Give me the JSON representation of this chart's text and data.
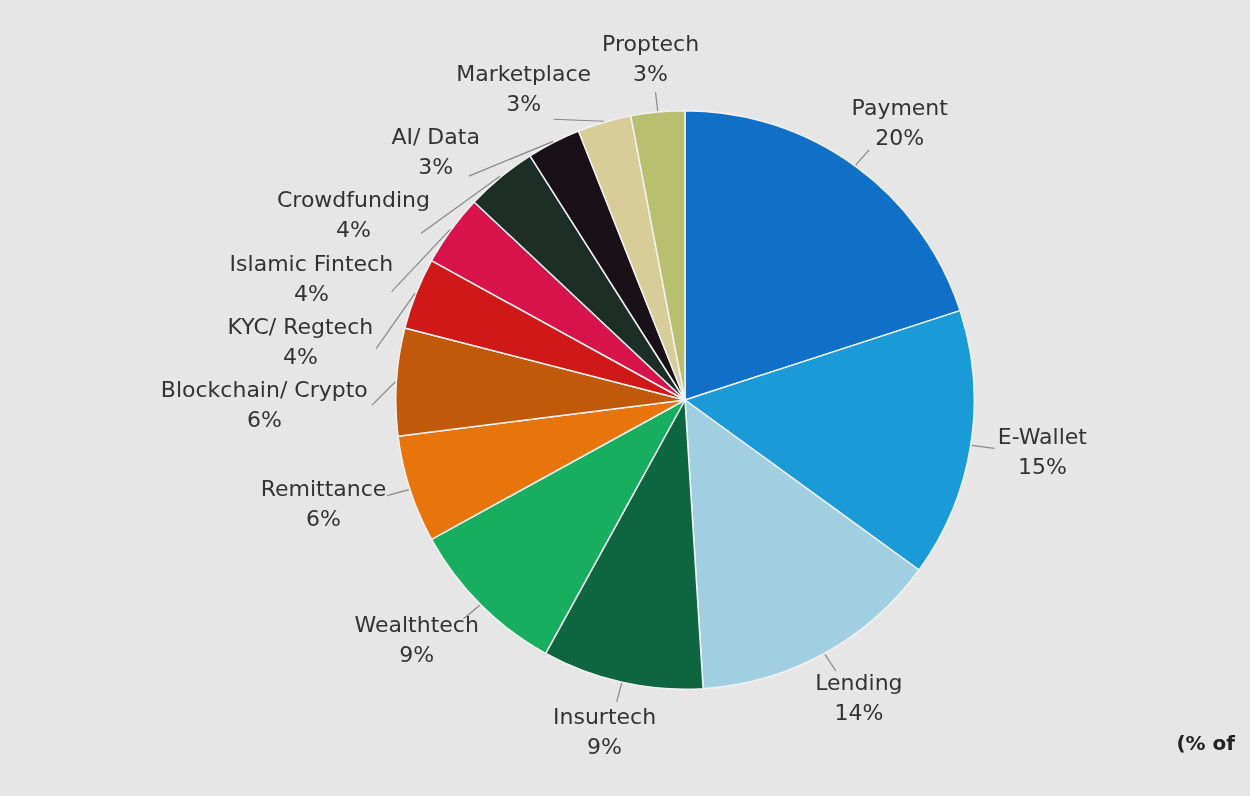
{
  "chart_data": {
    "type": "pie",
    "categories": [
      "Payment",
      "E-Wallet",
      "Lending",
      "Insurtech",
      "Wealthtech",
      "Remittance",
      "Blockchain/ Crypto",
      "KYC/ Regtech",
      "Islamic Fintech",
      "Crowdfunding",
      "AI/ Data",
      "Marketplace",
      "Proptech"
    ],
    "values": [
      20,
      15,
      14,
      9,
      9,
      6,
      6,
      4,
      4,
      4,
      3,
      3,
      3
    ],
    "value_labels": [
      "20%",
      "15%",
      "14%",
      "9%",
      "9%",
      "6%",
      "6%",
      "4%",
      "4%",
      "4%",
      "3%",
      "3%",
      "3%"
    ],
    "colors": [
      "#1070c8",
      "#1a9ad6",
      "#9fcfe0",
      "#0e6640",
      "#17ae60",
      "#e8740c",
      "#c05a0a",
      "#d01818",
      "#d8124a",
      "#1d2e26",
      "#1a1018",
      "#d8cc98",
      "#b8c070"
    ],
    "annotations": [
      "(% of"
    ],
    "legend": false
  }
}
